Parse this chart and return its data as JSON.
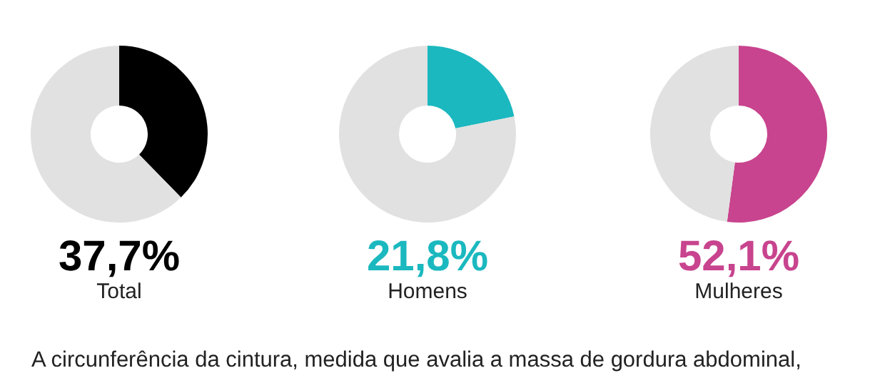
{
  "chart_data": [
    {
      "type": "donut",
      "title": "37,7%",
      "subtitle": "Total",
      "categories": [
        null,
        null
      ],
      "values": [
        37.7,
        62.3
      ],
      "colors": [
        "#000000",
        "#e1e1e1"
      ]
    },
    {
      "type": "donut",
      "title": "21,8%",
      "subtitle": "Homens",
      "categories": [
        null,
        null
      ],
      "values": [
        21.8,
        78.2
      ],
      "colors": [
        "#1bb8bf",
        "#e1e1e1"
      ]
    },
    {
      "type": "donut",
      "title": "52,1%",
      "subtitle": "Mulheres",
      "categories": [
        null,
        null
      ],
      "values": [
        52.1,
        47.9
      ],
      "colors": [
        "#c8448e",
        "#e1e1e1"
      ]
    },
    {
      "type": "other",
      "annotations": [
        "A circunferência da cintura, medida que avalia a massa de gordura abdominal,"
      ]
    }
  ]
}
